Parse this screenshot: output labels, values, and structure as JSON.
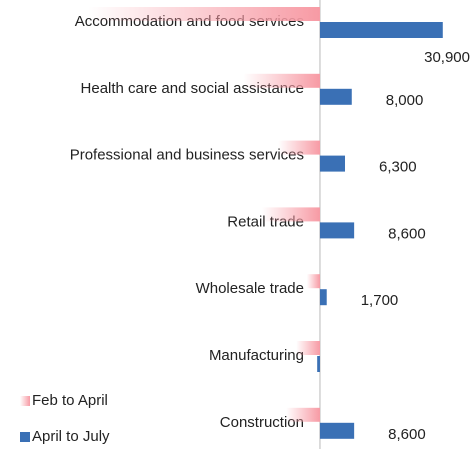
{
  "chart_data": {
    "type": "bar",
    "orientation": "horizontal",
    "categories": [
      "Accommodation and food services",
      "Health care and social assistance",
      "Professional and business services",
      "Retail trade",
      "Wholesale trade",
      "Manufacturing",
      "Construction"
    ],
    "series": [
      {
        "name": "Feb to April",
        "color": "#f79aa4",
        "values": [
          -58300,
          -19300,
          -10500,
          -14600,
          -3300,
          -6000,
          -8500
        ]
      },
      {
        "name": "April to July",
        "color": "#3a70b5",
        "values": [
          30900,
          8000,
          6300,
          8600,
          1700,
          -700,
          8600
        ],
        "value_labels": [
          "30,900",
          "8,000",
          "6,300",
          "8,600",
          "1,700",
          null,
          "8,600"
        ]
      }
    ],
    "xlim": [
      -80000,
      38000
    ],
    "legend": "bottom-left"
  }
}
